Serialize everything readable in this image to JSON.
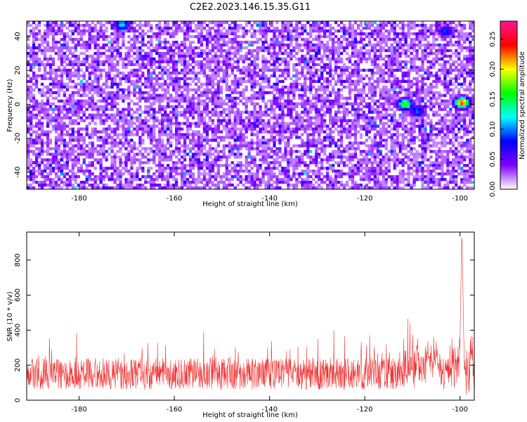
{
  "title": "C2E2.2023.146.15.35.G11",
  "chart_data": [
    {
      "type": "heatmap",
      "xlabel": "Height of straight line (km)",
      "ylabel": "Frequency (Hz)",
      "xlim": [
        -191,
        -97
      ],
      "ylim": [
        -50,
        49
      ],
      "xticks": [
        -180,
        -160,
        -140,
        -120,
        -100
      ],
      "yticks": [
        -40,
        -20,
        0,
        20,
        40
      ],
      "colorbar": {
        "label": "Normalized spectral amplitude",
        "range": [
          0,
          0.28
        ],
        "ticks": [
          "0.00",
          "0.05",
          "0.10",
          "0.15",
          "0.20",
          "0.25"
        ],
        "tick_values": [
          0.0,
          0.05,
          0.1,
          0.15,
          0.2,
          0.25
        ],
        "colormap": [
          "#ffffff",
          "#8000ff",
          "#0000ff",
          "#00ffff",
          "#00ff00",
          "#ffff00",
          "#ff0000",
          "#ff1493"
        ]
      },
      "background_level": 0.03,
      "hotspots": [
        {
          "x": -99.5,
          "y": 1,
          "value": 0.24
        },
        {
          "x": -111.5,
          "y": 0,
          "value": 0.18
        },
        {
          "x": -109,
          "y": -4,
          "value": 0.1
        },
        {
          "x": -171,
          "y": 47,
          "value": 0.12
        },
        {
          "x": -103,
          "y": 43,
          "value": 0.09
        }
      ]
    },
    {
      "type": "line",
      "xlabel": "Height of straight line (km)",
      "ylabel": "SNR (10 * v/v)",
      "xlim": [
        -191,
        -97
      ],
      "ylim": [
        0,
        960
      ],
      "xticks": [
        -180,
        -160,
        -140,
        -120,
        -100
      ],
      "yticks": [
        0,
        200,
        400,
        600,
        800
      ],
      "series": [
        {
          "color": "#ee3333",
          "baseline": 150,
          "typical_range": [
            50,
            400
          ],
          "peak": {
            "x": -99.6,
            "y": 960
          }
        }
      ]
    }
  ]
}
